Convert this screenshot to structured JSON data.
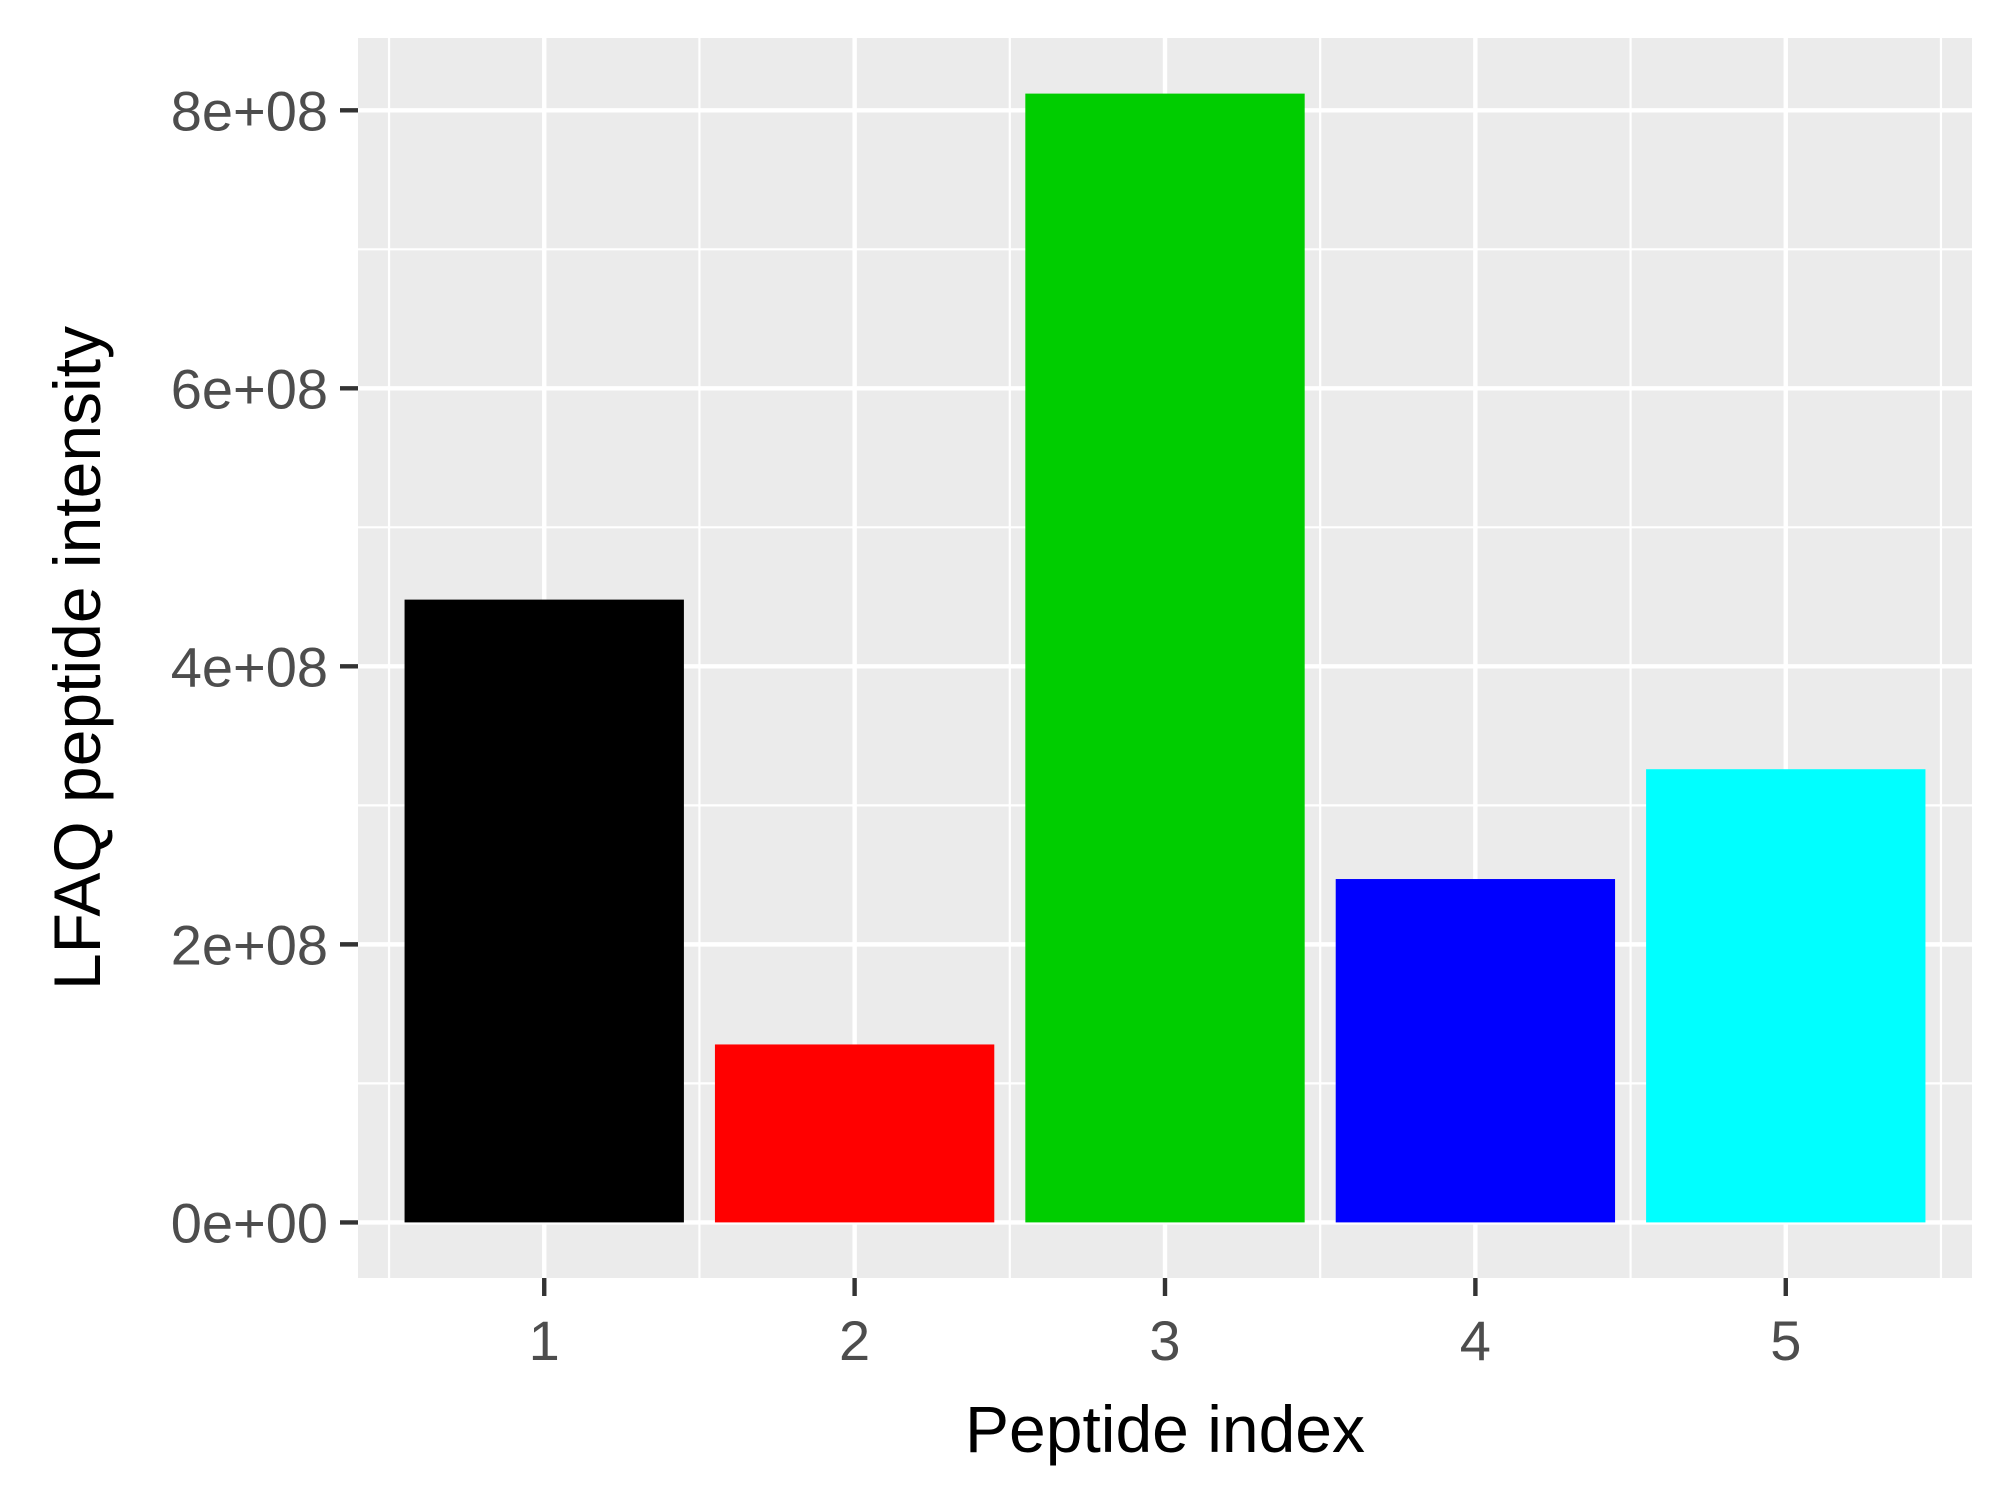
{
  "chart_data": {
    "type": "bar",
    "title": "",
    "xlabel": "Peptide index",
    "ylabel": "LFAQ peptide intensity",
    "categories": [
      "1",
      "2",
      "3",
      "4",
      "5"
    ],
    "values": [
      448000000,
      128000000,
      812000000,
      247000000,
      326000000
    ],
    "bar_colors": [
      "#000000",
      "#ff0000",
      "#00cd00",
      "#0000ff",
      "#00ffff"
    ],
    "y_ticks": [
      0,
      200000000,
      400000000,
      600000000,
      800000000
    ],
    "y_tick_labels": [
      "0e+00",
      "2e+08",
      "4e+08",
      "6e+08",
      "8e+08"
    ],
    "ylim": [
      -40000000,
      852000000
    ],
    "xlim": [
      0.4,
      5.6
    ],
    "grid": true,
    "panel_background": "#ebebeb",
    "grid_color": "#ffffff",
    "legend": "none"
  }
}
